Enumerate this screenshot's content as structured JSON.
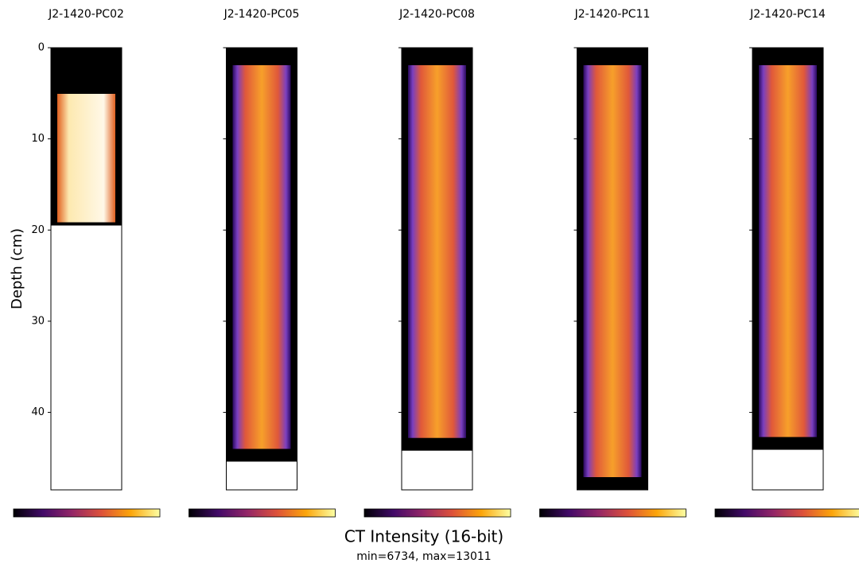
{
  "chart_data": {
    "type": "core-scan",
    "ylabel": "Depth (cm)",
    "ylim": [
      0,
      48.5
    ],
    "yticks": [
      0,
      10,
      20,
      30,
      40
    ],
    "invert_y": true,
    "categories": [
      "J2-1420-PC02",
      "J2-1420-PC05",
      "J2-1420-PC08",
      "J2-1420-PC11",
      "J2-1420-PC14"
    ],
    "values": [
      19.5,
      45.4,
      44.2,
      48.5,
      44.1
    ],
    "colorbar_label": "CT Intensity (16-bit)",
    "colorbar_note": "min=6734, max=13011"
  }
}
